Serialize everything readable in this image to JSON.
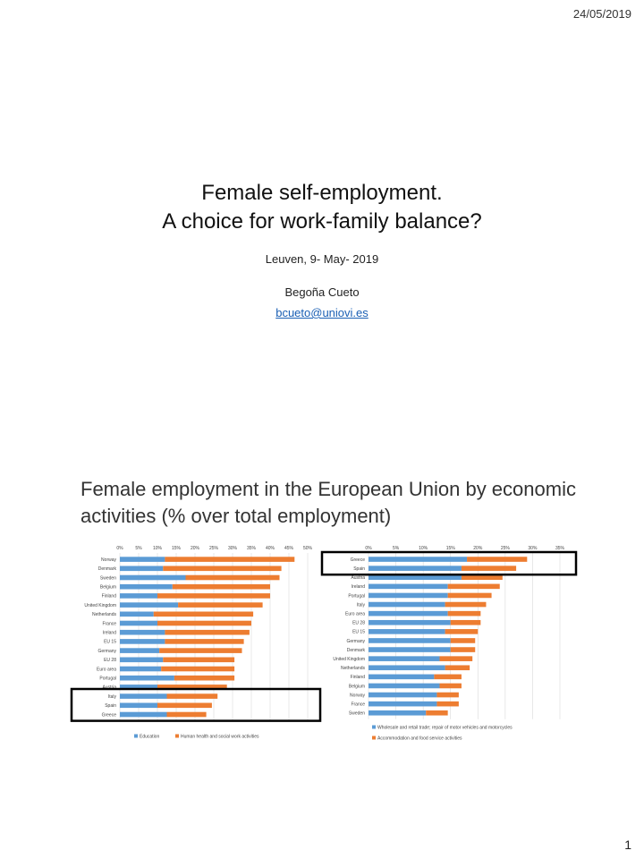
{
  "header": {
    "date": "24/05/2019"
  },
  "slide1": {
    "title_line1": "Female self-employment.",
    "title_line2": "A choice for work-family balance?",
    "place": "Leuven, 9- May- 2019",
    "author": "Begoña Cueto",
    "email": "bcueto@uniovi.es"
  },
  "slide2": {
    "title": "Female employment in the European Union by economic activities (% over total employment)"
  },
  "page_number": "1",
  "colors": {
    "blue": "#5b9bd5",
    "orange": "#ed7d31",
    "highlight": "#000000"
  },
  "chart_data": [
    {
      "type": "bar",
      "orientation": "horizontal",
      "stacked": true,
      "ticks": [
        "0%",
        "5%",
        "10%",
        "15%",
        "20%",
        "25%",
        "30%",
        "35%",
        "40%",
        "45%",
        "50%"
      ],
      "xlim": [
        0,
        50
      ],
      "categories": [
        "Norway",
        "Denmark",
        "Sweden",
        "Belgium",
        "Finland",
        "United Kingdom",
        "Netherlands",
        "France",
        "Ireland",
        "EU 15",
        "Germany",
        "EU 28",
        "Euro area",
        "Portugal",
        "Austria",
        "Italy",
        "Spain",
        "Greece"
      ],
      "series": [
        {
          "name": "Education",
          "color": "#5b9bd5",
          "values": [
            12,
            11.5,
            17.5,
            14,
            10,
            15.5,
            9,
            10,
            12,
            12,
            10.5,
            11.5,
            11,
            14.5,
            10,
            12.5,
            10,
            12.5
          ]
        },
        {
          "name": "Human health and social work activities",
          "color": "#ed7d31",
          "values": [
            34.5,
            31.5,
            25,
            26,
            30,
            22.5,
            26.5,
            25,
            22.5,
            21,
            22,
            19,
            19.5,
            16,
            18.5,
            13.5,
            14.5,
            10.5
          ]
        }
      ],
      "highlight": [
        "Italy",
        "Spain",
        "Greece"
      ],
      "legend": "bottom",
      "grid": true
    },
    {
      "type": "bar",
      "orientation": "horizontal",
      "stacked": true,
      "ticks": [
        "0%",
        "5%",
        "10%",
        "15%",
        "20%",
        "25%",
        "30%",
        "35%"
      ],
      "xlim": [
        0,
        35
      ],
      "categories": [
        "Greece",
        "Spain",
        "Austria",
        "Ireland",
        "Portugal",
        "Italy",
        "Euro area",
        "EU 28",
        "EU 15",
        "Germany",
        "Denmark",
        "United Kingdom",
        "Netherlands",
        "Finland",
        "Belgium",
        "Norway",
        "France",
        "Sweden"
      ],
      "series": [
        {
          "name": "Wholesale and retail trade; repair of motor vehicles and motorcycles",
          "color": "#5b9bd5",
          "values": [
            18,
            17,
            17,
            14.5,
            14.5,
            14,
            14.5,
            15,
            14,
            15,
            15,
            13,
            14,
            12,
            13,
            12.5,
            12.5,
            10.5
          ]
        },
        {
          "name": "Accommodation and food service activities",
          "color": "#ed7d31",
          "values": [
            11,
            10,
            7.5,
            9.5,
            8,
            7.5,
            6,
            5.5,
            6,
            4.5,
            4.5,
            6,
            4.5,
            5,
            4,
            4,
            4,
            4
          ]
        }
      ],
      "highlight": [
        "Greece",
        "Spain"
      ],
      "legend": "bottom",
      "grid": true
    }
  ]
}
